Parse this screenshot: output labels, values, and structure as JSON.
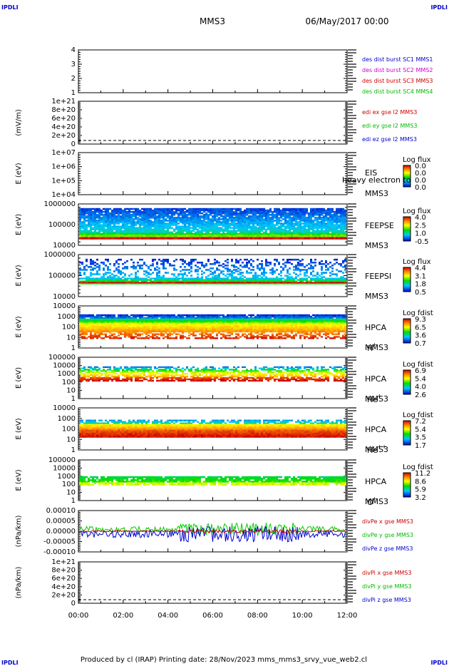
{
  "corner_labels": {
    "top_left": "IPDLI",
    "top_right": "IPDLI",
    "bottom_left": "IPDLI",
    "bottom_right": "IPDLI"
  },
  "header": {
    "spacecraft": "MMS3",
    "date": "06/May/2017 00:00"
  },
  "footer": {
    "text": "Produced by cl (IRAP)   Printing date: 28/Nov/2023   mms_mms3_srvy_vue_web2.cl"
  },
  "time_axis": {
    "ticks": [
      "00:00",
      "02:00",
      "04:00",
      "06:00",
      "08:00",
      "10:00",
      "12:00"
    ]
  },
  "colors": {
    "mms1": "#0000cc",
    "mms2": "#cc00cc",
    "mms3": "#cc0000",
    "mms4": "#00bb00",
    "x": "#cc0000",
    "y": "#00bb00",
    "z": "#0000cc"
  },
  "chart_data": [
    {
      "id": "p1",
      "type": "line",
      "ylabel": "",
      "yticks": [
        "4",
        "3",
        "2",
        "1"
      ],
      "legend": [
        "des dist burst SC1 MMS1",
        "des dist burst SC2 MMS2",
        "des dist burst SC3 MMS3",
        "des dist burst SC4 MMS4"
      ]
    },
    {
      "id": "p2",
      "type": "line",
      "ylabel": "(mV/m)",
      "yticks": [
        "1e+21",
        "8e+20",
        "6e+20",
        "4e+20",
        "2e+20",
        "0"
      ],
      "legend": [
        "edi ex gse l2 MMS3",
        "edi ey gse l2 MMS3",
        "edi ez gse l2 MMS3"
      ]
    },
    {
      "id": "p3",
      "type": "heatmap",
      "ylabel": "E (eV)",
      "yticks": [
        "1e+07",
        "1e+06",
        "1e+05",
        "1e+04"
      ],
      "instrument": "EIS",
      "sc": "MMS3",
      "overlay": "heavy electron to",
      "cb_title": "Log flux",
      "cb_ticks": [
        "0.0",
        "0.0",
        "0.0",
        "0.0"
      ]
    },
    {
      "id": "p4",
      "type": "heatmap",
      "ylabel": "E (eV)",
      "yticks": [
        "1000000",
        "100000",
        "10000"
      ],
      "instrument": "FEEPSE",
      "sc": "MMS3",
      "cb_title": "Log flux",
      "cb_ticks": [
        "4.0",
        "2.5",
        "1.0",
        "-0.5"
      ]
    },
    {
      "id": "p5",
      "type": "heatmap",
      "ylabel": "E (eV)",
      "yticks": [
        "1000000",
        "100000",
        "10000"
      ],
      "instrument": "FEEPSI",
      "sc": "MMS3",
      "cb_title": "Log flux",
      "cb_ticks": [
        "4.4",
        "3.1",
        "1.8",
        "0.5"
      ]
    },
    {
      "id": "p6",
      "type": "heatmap",
      "ylabel": "E (eV)",
      "yticks": [
        "10000",
        "1000",
        "100",
        "10",
        "1"
      ],
      "instrument": "HPCA",
      "sc": "MMS3",
      "species": "H",
      "charge": "+",
      "cb_title": "Log fdist",
      "cb_ticks": [
        "9.3",
        "6.5",
        "3.6",
        "0.7"
      ]
    },
    {
      "id": "p7",
      "type": "heatmap",
      "ylabel": "E (eV)",
      "yticks": [
        "100000",
        "10000",
        "1000",
        "100",
        "10",
        "1"
      ],
      "instrument": "HPCA",
      "sc": "MMS3",
      "species": "He",
      "charge": "+",
      "cb_title": "Log fdist",
      "cb_ticks": [
        "6.9",
        "5.4",
        "4.0",
        "2.6"
      ]
    },
    {
      "id": "p8",
      "type": "heatmap",
      "ylabel": "E (eV)",
      "yticks": [
        "10000",
        "1000",
        "100",
        "10",
        "1"
      ],
      "instrument": "HPCA",
      "sc": "MMS3",
      "species": "He",
      "charge": "++",
      "cb_title": "Log fdist",
      "cb_ticks": [
        "7.2",
        "5.4",
        "3.5",
        "1.7"
      ]
    },
    {
      "id": "p9",
      "type": "heatmap",
      "ylabel": "E (eV)",
      "yticks": [
        "100000",
        "10000",
        "1000",
        "100",
        "10",
        "1"
      ],
      "instrument": "HPCA",
      "sc": "MMS3",
      "species": "O",
      "charge": "+",
      "cb_title": "Log fdist",
      "cb_ticks": [
        "11.2",
        "8.6",
        "5.9",
        "3.2"
      ]
    },
    {
      "id": "p10",
      "type": "line",
      "ylabel": "(nPa/km)",
      "yticks": [
        "0.00010",
        "0.00005",
        "0.00000",
        "-0.00005",
        "-0.00010"
      ],
      "legend": [
        "divPe x gse MMS3",
        "divPe y gse MMS3",
        "divPe z gse MMS3"
      ]
    },
    {
      "id": "p11",
      "type": "line",
      "ylabel": "(nPa/km)",
      "yticks": [
        "1e+21",
        "8e+20",
        "6e+20",
        "4e+20",
        "2e+20",
        "0"
      ],
      "legend": [
        "divPi x gse MMS3",
        "divPi y gse MMS3",
        "divPi z gse MMS3"
      ]
    }
  ]
}
